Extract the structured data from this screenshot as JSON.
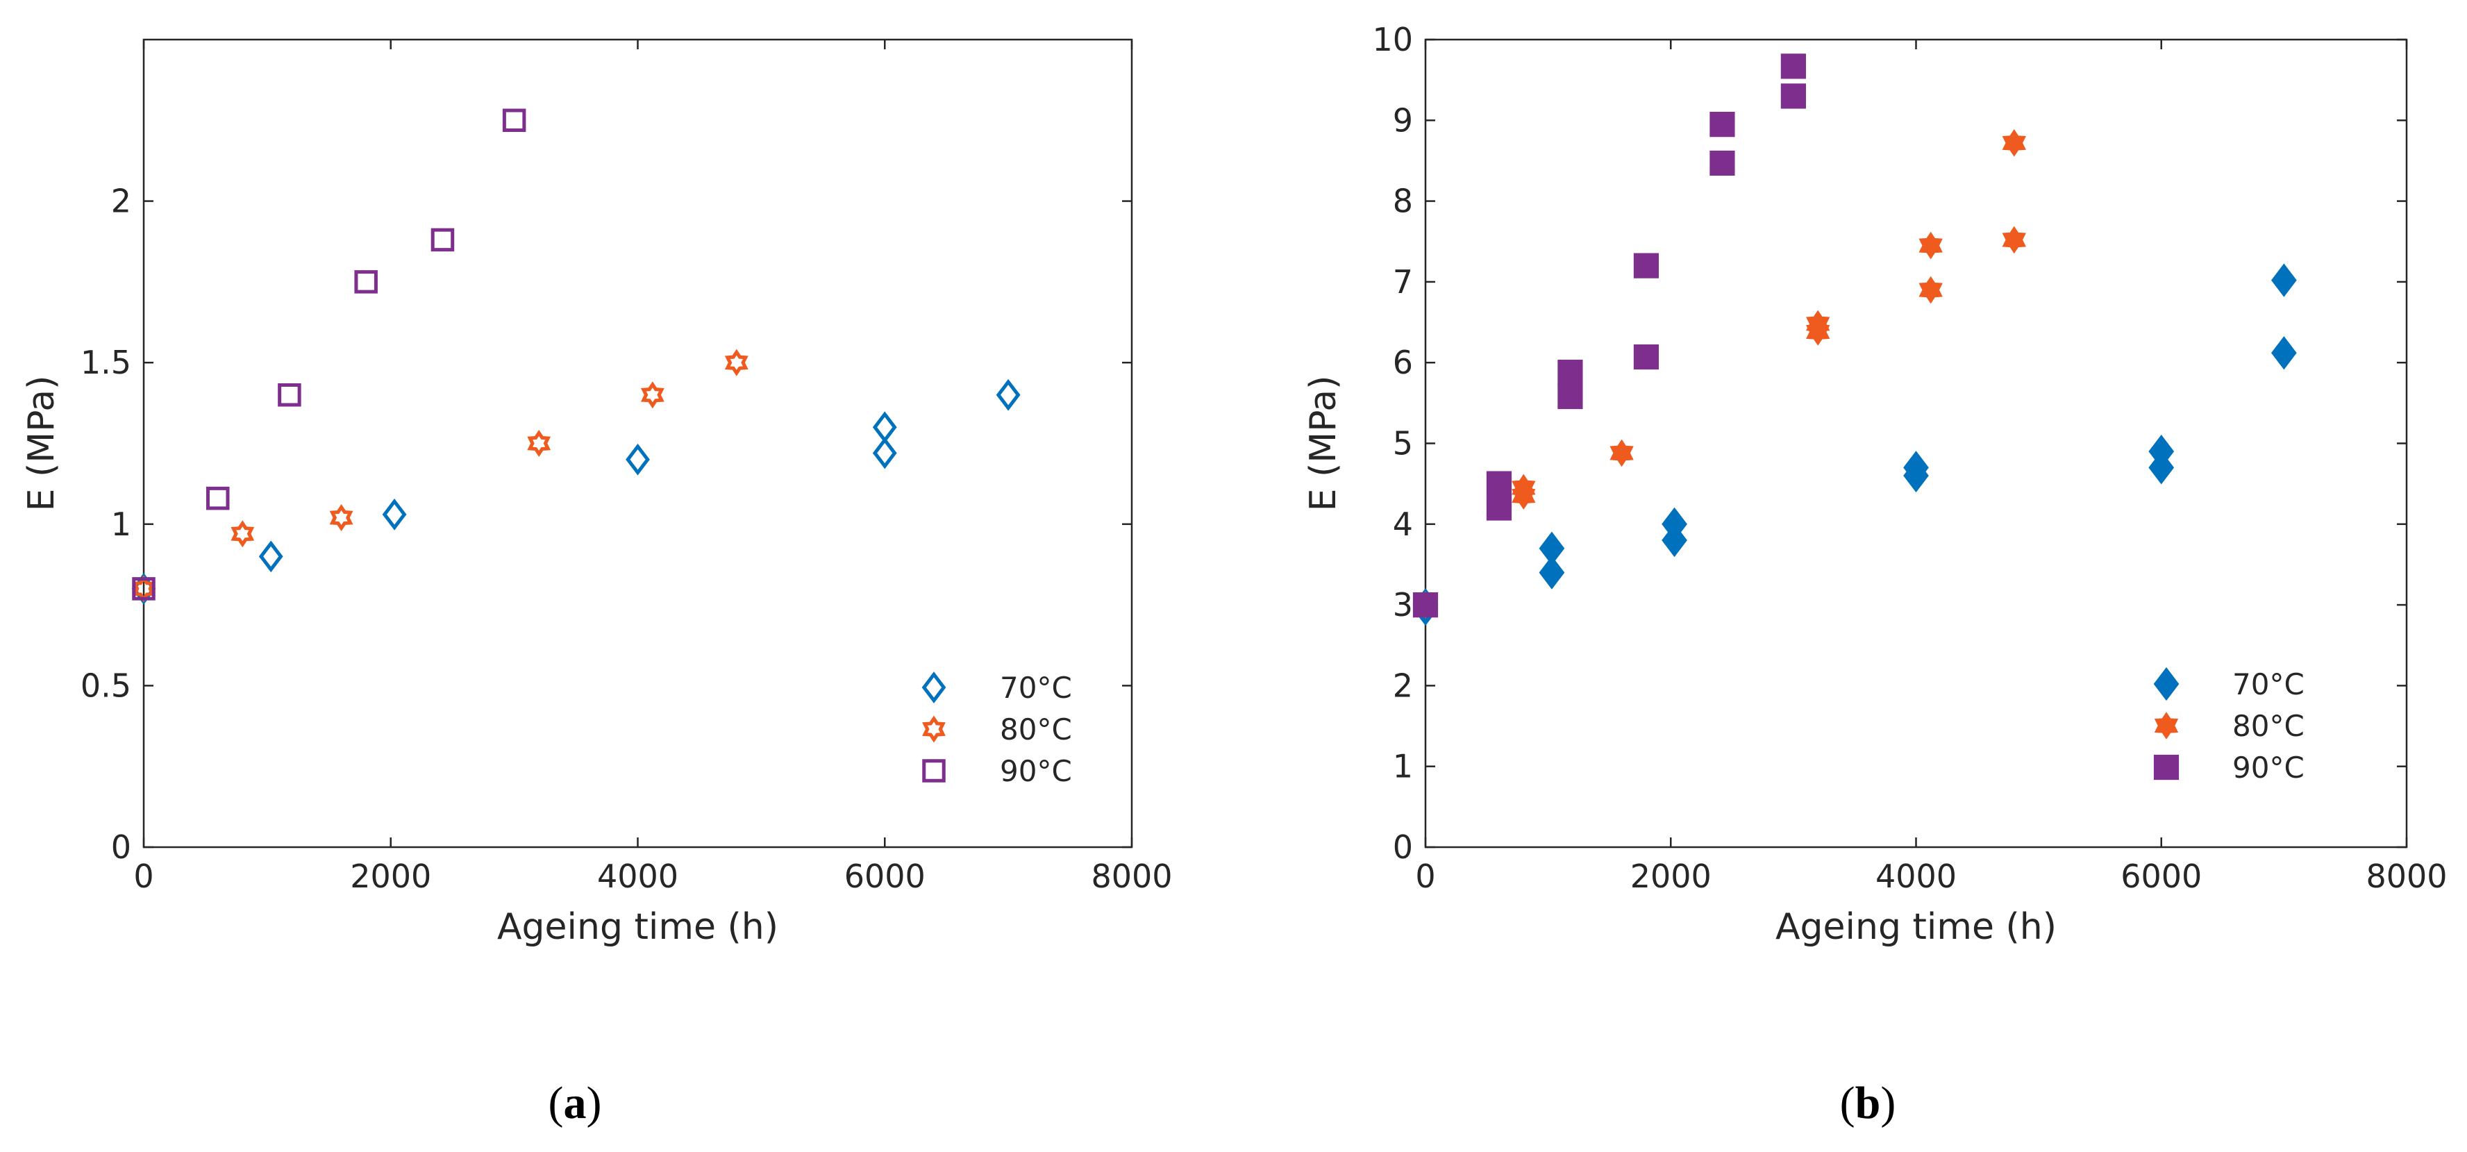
{
  "figure": {
    "panels": [
      {
        "caption_letter": "a",
        "caption_open": "(",
        "caption_close": ")"
      },
      {
        "caption_letter": "b",
        "caption_open": "(",
        "caption_close": ")"
      }
    ]
  },
  "colors": {
    "70C": "#0072BD",
    "80C": "#EF5A1E",
    "90C": "#7E2F8E",
    "axis": "#262626"
  },
  "chart_data": [
    {
      "type": "scatter",
      "panel": "a",
      "xlabel": "Ageing time (h)",
      "ylabel": "E (MPa)",
      "xlim": [
        0,
        8000
      ],
      "ylim": [
        0,
        2.5
      ],
      "xticks": [
        0,
        2000,
        4000,
        6000,
        8000
      ],
      "xtick_labels": [
        "0",
        "2000",
        "4000",
        "6000",
        "8000"
      ],
      "yticks": [
        0,
        0.5,
        1,
        1.5,
        2
      ],
      "ytick_labels": [
        "0",
        "0.5",
        "1",
        "1.5",
        "2"
      ],
      "grid": false,
      "legend_position": "bottom-right",
      "series": [
        {
          "name": "70°C",
          "marker": "diamond-open",
          "color": "#0072BD",
          "x": [
            0,
            1030,
            2030,
            4000,
            6000,
            6000,
            7000
          ],
          "y": [
            0.8,
            0.9,
            1.03,
            1.2,
            1.3,
            1.22,
            1.4
          ]
        },
        {
          "name": "80°C",
          "marker": "hexagram-open",
          "color": "#EF5A1E",
          "x": [
            0,
            800,
            1600,
            3200,
            4120,
            4800
          ],
          "y": [
            0.8,
            0.97,
            1.02,
            1.25,
            1.4,
            1.5
          ]
        },
        {
          "name": "90°C",
          "marker": "square-open",
          "color": "#7E2F8E",
          "x": [
            0,
            600,
            1180,
            1800,
            2420,
            3000
          ],
          "y": [
            0.8,
            1.08,
            1.4,
            1.75,
            1.88,
            2.25
          ]
        }
      ]
    },
    {
      "type": "scatter",
      "panel": "b",
      "xlabel": "Ageing time (h)",
      "ylabel": "E (MPa)",
      "xlim": [
        0,
        8000
      ],
      "ylim": [
        0,
        10
      ],
      "xticks": [
        0,
        2000,
        4000,
        6000,
        8000
      ],
      "xtick_labels": [
        "0",
        "2000",
        "4000",
        "6000",
        "8000"
      ],
      "yticks": [
        0,
        1,
        2,
        3,
        4,
        5,
        6,
        7,
        8,
        9,
        10
      ],
      "ytick_labels": [
        "0",
        "1",
        "2",
        "3",
        "4",
        "5",
        "6",
        "7",
        "8",
        "9",
        "10"
      ],
      "grid": false,
      "legend_position": "bottom-right",
      "series": [
        {
          "name": "70°C",
          "marker": "diamond-filled",
          "color": "#0072BD",
          "x": [
            0,
            0,
            1030,
            1030,
            2030,
            2030,
            4000,
            4000,
            6000,
            6000,
            7000,
            7000
          ],
          "y": [
            3.0,
            2.95,
            3.7,
            3.4,
            4.0,
            3.8,
            4.7,
            4.6,
            4.9,
            4.7,
            7.02,
            6.12
          ]
        },
        {
          "name": "80°C",
          "marker": "hexagram-filled",
          "color": "#EF5A1E",
          "x": [
            0,
            800,
            800,
            1600,
            3200,
            3200,
            4120,
            4120,
            4800,
            4800
          ],
          "y": [
            3.0,
            4.45,
            4.35,
            4.88,
            6.48,
            6.38,
            7.45,
            6.9,
            8.72,
            7.52
          ]
        },
        {
          "name": "90°C",
          "marker": "square-filled",
          "color": "#7E2F8E",
          "x": [
            0,
            600,
            600,
            1180,
            1180,
            1800,
            1800,
            2420,
            2420,
            3000,
            3000
          ],
          "y": [
            3.0,
            4.5,
            4.2,
            5.88,
            5.58,
            7.2,
            6.07,
            8.95,
            8.47,
            9.67,
            9.3
          ]
        }
      ]
    }
  ]
}
